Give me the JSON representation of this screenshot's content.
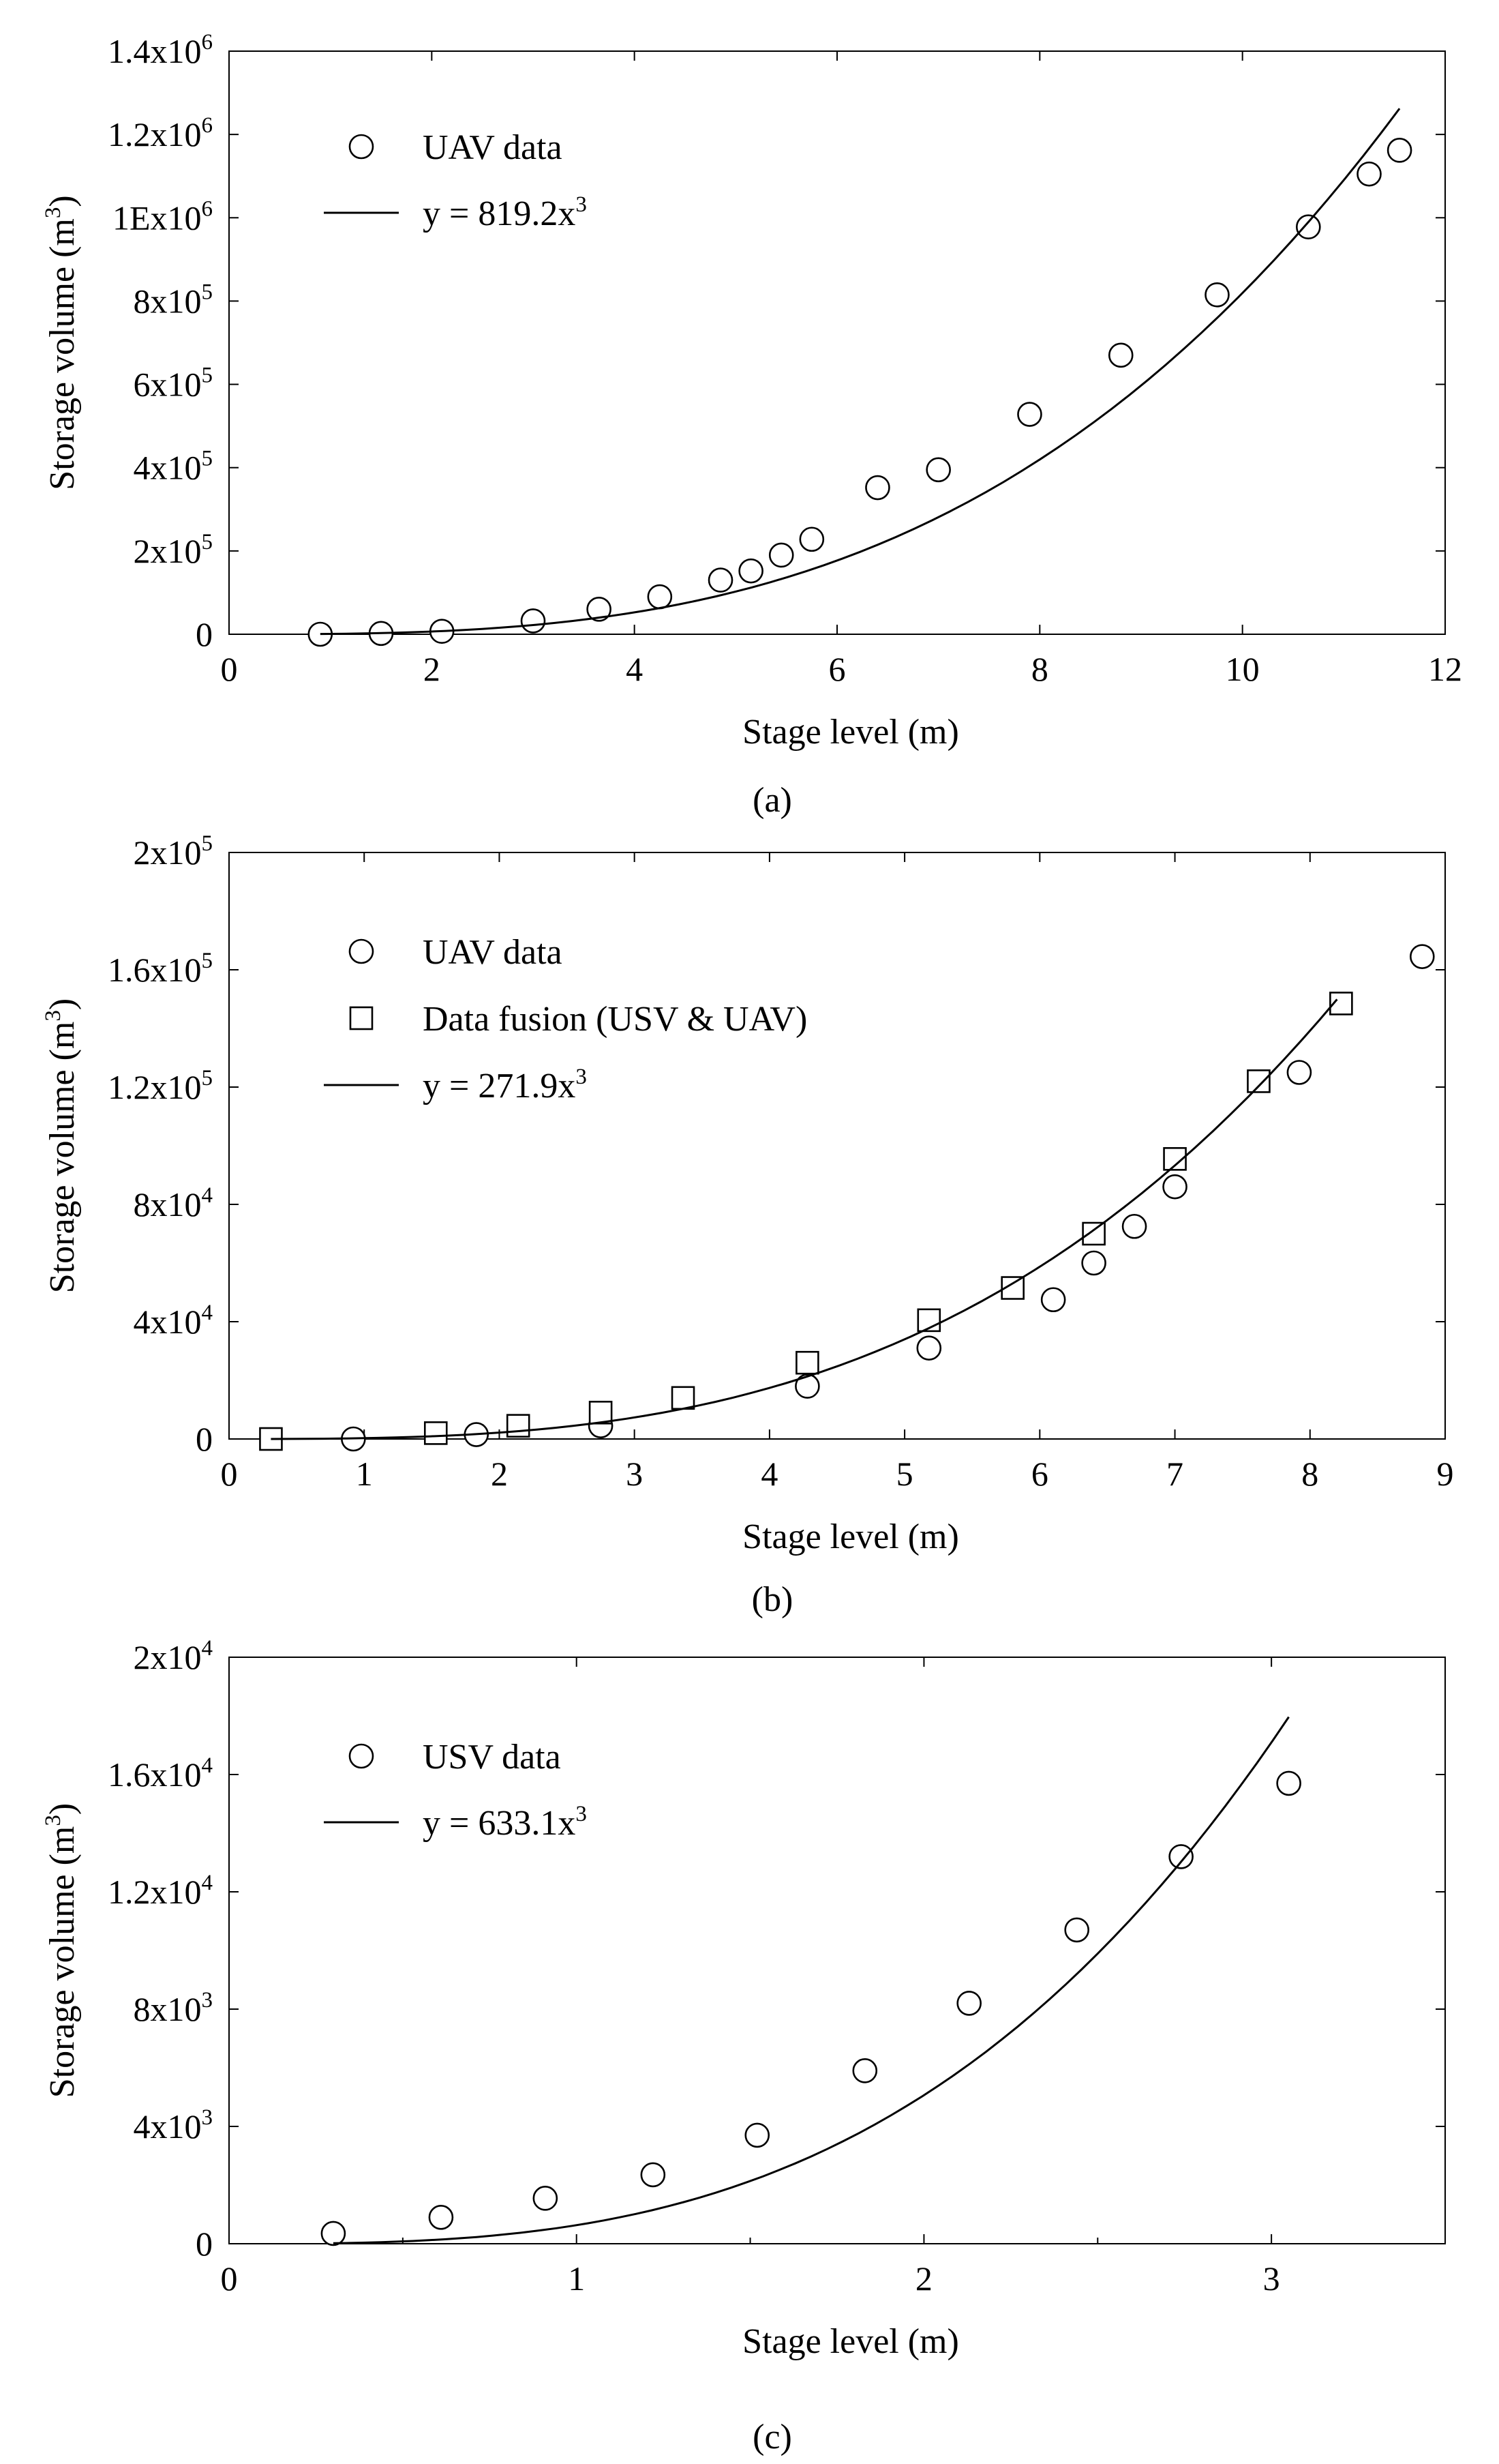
{
  "figure": {
    "colors": {
      "ink": "#000000",
      "background": "#ffffff"
    }
  },
  "chart_data": [
    {
      "type": "scatter",
      "caption": "(a)",
      "title": "",
      "xlabel": "Stage level (m)",
      "ylabel": "Storage volume (m³)",
      "ylabel_base": "Storage volume (m",
      "ylabel_sup": "3",
      "ylabel_end": ")",
      "xlim": [
        0,
        12
      ],
      "ylim": [
        0,
        1400000
      ],
      "x_ticks": [
        0,
        2,
        4,
        6,
        8,
        10,
        12
      ],
      "x_tick_labels": [
        "0",
        "2",
        "4",
        "6",
        "8",
        "10",
        "12"
      ],
      "y_ticks": [
        0,
        200000,
        400000,
        600000,
        800000,
        1000000,
        1200000,
        1400000
      ],
      "y_tick_labels": [
        {
          "base": "0",
          "sup": ""
        },
        {
          "base": "2x10",
          "sup": "5"
        },
        {
          "base": "4x10",
          "sup": "5"
        },
        {
          "base": "6x10",
          "sup": "5"
        },
        {
          "base": "8x10",
          "sup": "5"
        },
        {
          "base": "1E",
          "sup": "",
          "text": "1Ex10",
          "sup2": "6"
        },
        {
          "base": "1.2x10",
          "sup": "6"
        },
        {
          "base": "1.4x10",
          "sup": "6"
        }
      ],
      "legend_position": "top-left",
      "series": [
        {
          "name": "UAV data",
          "marker": "circle",
          "x": [
            0.9,
            1.5,
            2.1,
            3.0,
            3.65,
            4.25,
            4.85,
            5.15,
            5.45,
            5.75,
            6.4,
            7.0,
            7.9,
            8.8,
            9.75,
            10.65,
            11.25,
            11.55
          ],
          "y": [
            0,
            2000,
            7000,
            32000,
            60000,
            90000,
            130000,
            152000,
            190000,
            228000,
            352000,
            395000,
            528000,
            670000,
            815000,
            978000,
            1105000,
            1162000
          ]
        },
        {
          "name": "y = 819.2x³",
          "label_base": "y = 819.2x",
          "label_sup": "3",
          "marker": "line",
          "coefficient": 819.2,
          "x_range": [
            0.9,
            11.55
          ]
        }
      ]
    },
    {
      "type": "scatter",
      "caption": "(b)",
      "title": "",
      "xlabel": "Stage level (m)",
      "ylabel": "Storage volume (m³)",
      "ylabel_base": "Storage volume (m",
      "ylabel_sup": "3",
      "ylabel_end": ")",
      "xlim": [
        0,
        9
      ],
      "ylim": [
        0,
        200000
      ],
      "x_ticks": [
        0,
        1,
        2,
        3,
        4,
        5,
        6,
        7,
        8,
        9
      ],
      "x_tick_labels": [
        "0",
        "1",
        "2",
        "3",
        "4",
        "5",
        "6",
        "7",
        "8",
        "9"
      ],
      "y_ticks": [
        0,
        40000,
        80000,
        120000,
        160000,
        200000
      ],
      "y_tick_labels": [
        {
          "base": "0",
          "sup": ""
        },
        {
          "base": "4x10",
          "sup": "4"
        },
        {
          "base": "8x10",
          "sup": "4"
        },
        {
          "base": "1.2x10",
          "sup": "5"
        },
        {
          "base": "1.6x10",
          "sup": "5"
        },
        {
          "base": "2x10",
          "sup": "5"
        }
      ],
      "legend_position": "top-left",
      "series": [
        {
          "name": "UAV data",
          "marker": "circle",
          "x": [
            0.92,
            1.83,
            2.75,
            4.28,
            5.18,
            6.1,
            6.4,
            6.7,
            7.0,
            7.92,
            8.83
          ],
          "y": [
            0,
            1500,
            4500,
            18000,
            31000,
            47500,
            60000,
            72500,
            86000,
            125000,
            164500
          ]
        },
        {
          "name": "Data fusion (USV & UAV)",
          "marker": "square",
          "x": [
            0.31,
            1.53,
            2.14,
            2.75,
            3.36,
            4.28,
            5.18,
            5.8,
            6.4,
            7.0,
            7.62,
            8.23
          ],
          "y": [
            0,
            2000,
            4500,
            9000,
            14000,
            26000,
            40500,
            51500,
            70000,
            95500,
            122000,
            148500
          ]
        },
        {
          "name": "y = 271.9x³",
          "label_base": "y = 271.9x",
          "label_sup": "3",
          "marker": "line",
          "coefficient": 271.9,
          "x_range": [
            0.31,
            8.2
          ]
        }
      ]
    },
    {
      "type": "scatter",
      "caption": "(c)",
      "title": "",
      "xlabel": "Stage level (m)",
      "ylabel": "Storage volume (m³)",
      "ylabel_base": "Storage volume (m",
      "ylabel_sup": "3",
      "ylabel_end": ")",
      "xlim": [
        0,
        3.5
      ],
      "ylim": [
        0,
        20000
      ],
      "x_ticks": [
        0,
        1,
        2,
        3
      ],
      "x_tick_labels": [
        "0",
        "1",
        "2",
        "3"
      ],
      "x_minor_ticks": [
        0.5,
        1.5,
        2.5,
        3.5
      ],
      "y_ticks": [
        0,
        4000,
        8000,
        12000,
        16000,
        20000
      ],
      "y_tick_labels": [
        {
          "base": "0",
          "sup": ""
        },
        {
          "base": "4x10",
          "sup": "3"
        },
        {
          "base": "8x10",
          "sup": "3"
        },
        {
          "base": "1.2x10",
          "sup": "4"
        },
        {
          "base": "1.6x10",
          "sup": "4"
        },
        {
          "base": "2x10",
          "sup": "4"
        }
      ],
      "legend_position": "top-left",
      "series": [
        {
          "name": "USV data",
          "marker": "circle",
          "x": [
            0.3,
            0.61,
            0.91,
            1.22,
            1.52,
            1.83,
            2.13,
            2.44,
            2.74,
            3.05
          ],
          "y": [
            350,
            900,
            1550,
            2350,
            3700,
            5900,
            8200,
            10700,
            13200,
            15700
          ]
        },
        {
          "name": "y = 633.1x³",
          "label_base": "y = 633.1x",
          "label_sup": "3",
          "marker": "line",
          "coefficient": 633.1,
          "x_range": [
            0.3,
            3.05
          ]
        }
      ]
    }
  ]
}
